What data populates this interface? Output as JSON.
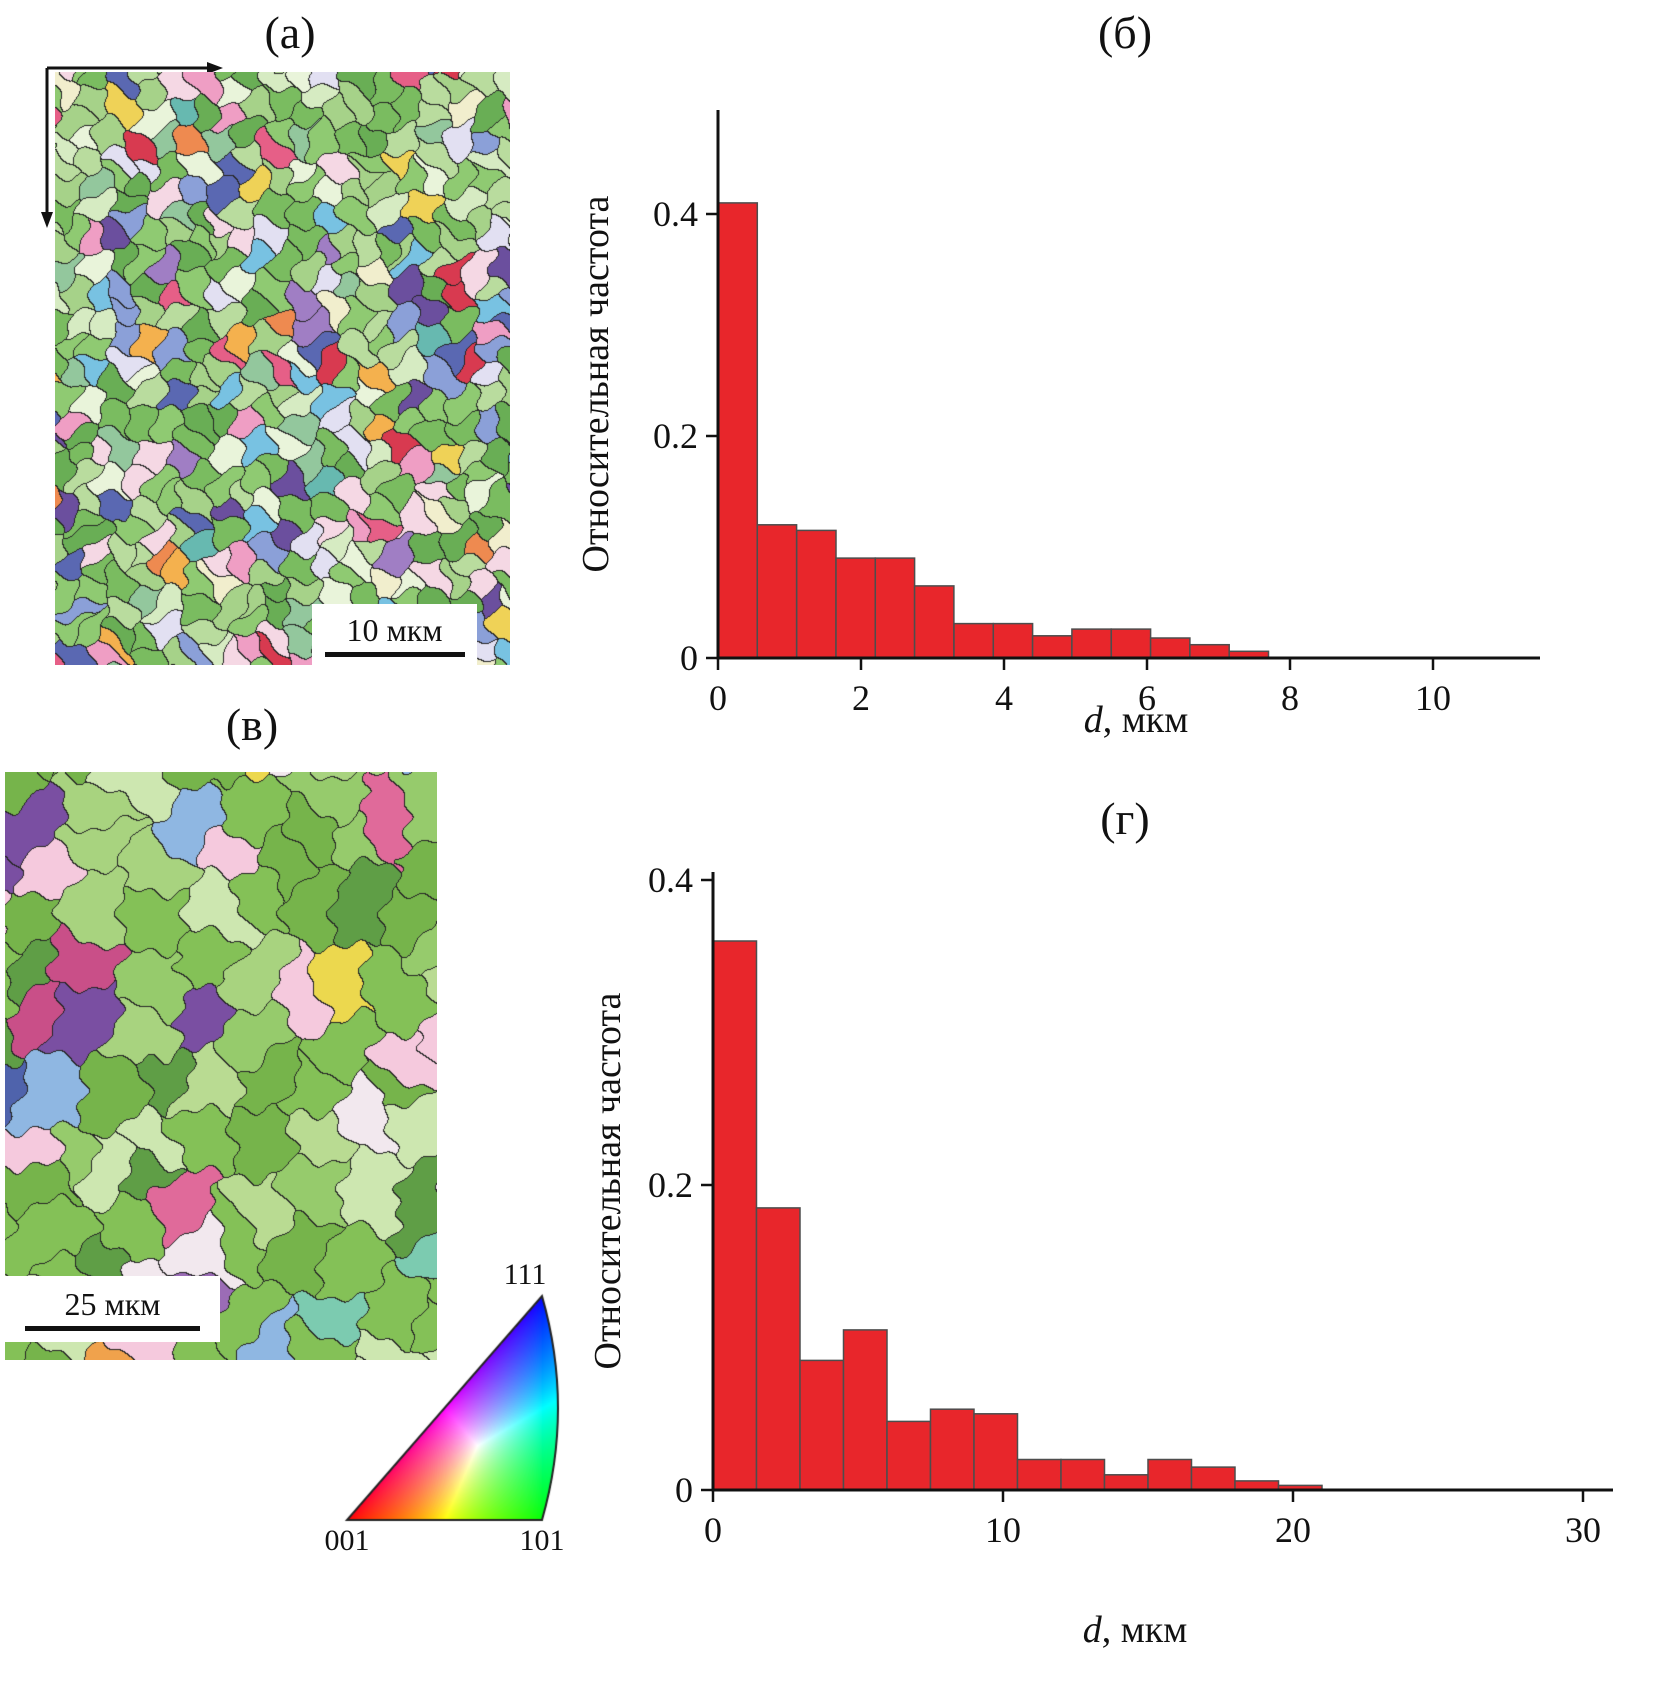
{
  "figure": {
    "panel_a": {
      "label": "(а)",
      "scale_bar_label": "10 мкм"
    },
    "panel_b": {
      "label": "(б)"
    },
    "panel_v": {
      "label": "(в)",
      "scale_bar_label": "25 мкм"
    },
    "panel_g": {
      "label": "(г)"
    },
    "ipf_triangle": {
      "top_label": "111",
      "bottom_left_label": "001",
      "bottom_right_label": "101",
      "corner_colors": {
        "001": "#ff0000",
        "101": "#00ff00",
        "111": "#0000ff"
      }
    },
    "maps": {
      "a": {
        "seed": 101,
        "cell": 26,
        "warp": 5,
        "boundary_color": "#262626",
        "palette": [
          {
            "c": "#7abc60",
            "w": 3
          },
          {
            "c": "#8fca72",
            "w": 3
          },
          {
            "c": "#a6d289",
            "w": 2.5
          },
          {
            "c": "#69ae55",
            "w": 2
          },
          {
            "c": "#b9dc9e",
            "w": 2
          },
          {
            "c": "#93c79d",
            "w": 1.5
          },
          {
            "c": "#d6ebc2",
            "w": 1.2
          },
          {
            "c": "#e9f4da",
            "w": 1
          },
          {
            "c": "#f1eecd",
            "w": 0.8
          },
          {
            "c": "#e2e0f2",
            "w": 0.8
          },
          {
            "c": "#f5d8e4",
            "w": 0.8
          },
          {
            "c": "#5a68b2",
            "w": 0.9
          },
          {
            "c": "#8ba0d8",
            "w": 0.8
          },
          {
            "c": "#78c2e2",
            "w": 0.7
          },
          {
            "c": "#6b4f9e",
            "w": 0.8
          },
          {
            "c": "#a07ec4",
            "w": 0.5
          },
          {
            "c": "#ef9ec4",
            "w": 0.6
          },
          {
            "c": "#e65f87",
            "w": 0.5
          },
          {
            "c": "#d83a50",
            "w": 0.5
          },
          {
            "c": "#ee8a50",
            "w": 0.6
          },
          {
            "c": "#f4b14e",
            "w": 0.4
          },
          {
            "c": "#efd257",
            "w": 0.4
          },
          {
            "c": "#67b9b0",
            "w": 0.4
          }
        ]
      },
      "v": {
        "seed": 202,
        "cell": 56,
        "warp": 6,
        "boundary_color": "#262626",
        "palette": [
          {
            "c": "#84c157",
            "w": 4
          },
          {
            "c": "#76b44b",
            "w": 3
          },
          {
            "c": "#96cb6c",
            "w": 3
          },
          {
            "c": "#a8d37f",
            "w": 2
          },
          {
            "c": "#b9db92",
            "w": 1.5
          },
          {
            "c": "#5f9e46",
            "w": 1.5
          },
          {
            "c": "#cde7b0",
            "w": 1
          },
          {
            "c": "#f5c9dd",
            "w": 0.7
          },
          {
            "c": "#f2e8ee",
            "w": 0.5
          },
          {
            "c": "#7a4fa2",
            "w": 0.9
          },
          {
            "c": "#9b6cb6",
            "w": 0.6
          },
          {
            "c": "#4f63ac",
            "w": 0.6
          },
          {
            "c": "#8fb7e2",
            "w": 0.6
          },
          {
            "c": "#f0a24c",
            "w": 0.6
          },
          {
            "c": "#ecd84e",
            "w": 0.7
          },
          {
            "c": "#7ccbb0",
            "w": 0.4
          },
          {
            "c": "#e06a9a",
            "w": 0.4
          },
          {
            "c": "#c94f88",
            "w": 0.3
          }
        ]
      }
    }
  },
  "chart_data": [
    {
      "type": "bar",
      "panel": "(б)",
      "title": "(б)",
      "ylabel": "Относительная частота",
      "xlabel_italic": "d",
      "xlabel_rest": ", мкм",
      "bar_color": "#e8262b",
      "bar_edge_color": "#4d4d4d",
      "bin_start": 0,
      "bin_width": 0.55,
      "values": [
        0.41,
        0.12,
        0.115,
        0.09,
        0.09,
        0.065,
        0.031,
        0.031,
        0.02,
        0.026,
        0.026,
        0.018,
        0.012,
        0.006
      ],
      "xlim": [
        0,
        11.5
      ],
      "ylim": [
        0,
        0.495
      ],
      "grid": false,
      "xticks": [
        0,
        2,
        4,
        6,
        8,
        10
      ],
      "xtick_labels": [
        "0",
        "2",
        "4",
        "6",
        "8",
        "10"
      ],
      "yticks": [
        0,
        0.2,
        0.4
      ],
      "ytick_labels": [
        "0",
        "0.2",
        "0.4"
      ]
    },
    {
      "type": "bar",
      "panel": "(г)",
      "title": "(г)",
      "ylabel": "Относительная частота",
      "xlabel_italic": "d",
      "xlabel_rest": ", мкм",
      "bar_color": "#e8262b",
      "bar_edge_color": "#4d4d4d",
      "bin_start": 0,
      "bin_width": 1.5,
      "values": [
        0.36,
        0.185,
        0.085,
        0.105,
        0.045,
        0.053,
        0.05,
        0.02,
        0.02,
        0.01,
        0.02,
        0.015,
        0.006,
        0.003
      ],
      "xlim": [
        0,
        31
      ],
      "ylim": [
        0,
        0.405
      ],
      "grid": false,
      "xticks": [
        0,
        10,
        20,
        30
      ],
      "xtick_labels": [
        "0",
        "10",
        "20",
        "30"
      ],
      "yticks": [
        0,
        0.2,
        0.4
      ],
      "ytick_labels": [
        "0",
        "0.2",
        "0.4"
      ]
    }
  ]
}
